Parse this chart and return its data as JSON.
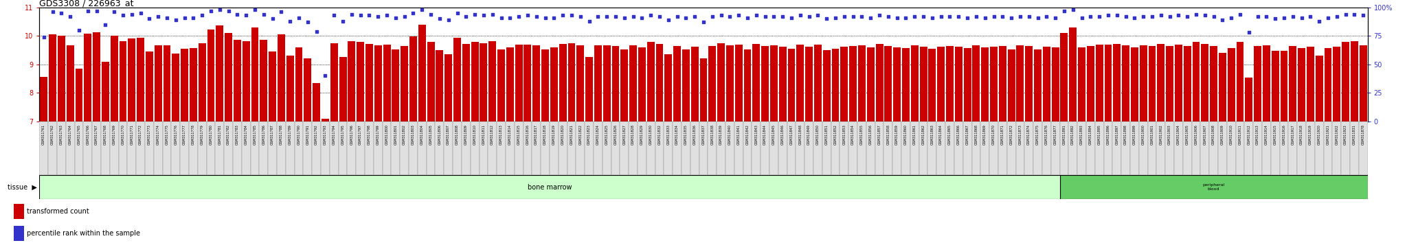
{
  "title": "GDS3308 / 226963_at",
  "bar_color": "#cc0000",
  "dot_color": "#3333cc",
  "left_ylim": [
    7,
    11
  ],
  "right_ylim": [
    0,
    100
  ],
  "left_yticks": [
    7,
    8,
    9,
    10,
    11
  ],
  "right_yticks": [
    0,
    25,
    50,
    75,
    100
  ],
  "right_yticklabels": [
    "0",
    "25",
    "50",
    "75",
    "100%"
  ],
  "tissue_color": "#ccffcc",
  "bone_marrow_label": "bone marrow",
  "peripheral_blood_label": "peripheral\nblood",
  "peripheral_blood_color": "#66cc66",
  "legend_bar_label": "transformed count",
  "legend_dot_label": "percentile rank within the sample",
  "samples": [
    "GSM311761",
    "GSM311762",
    "GSM311763",
    "GSM311764",
    "GSM311765",
    "GSM311766",
    "GSM311767",
    "GSM311768",
    "GSM311769",
    "GSM311770",
    "GSM311771",
    "GSM311772",
    "GSM311773",
    "GSM311774",
    "GSM311775",
    "GSM311776",
    "GSM311777",
    "GSM311778",
    "GSM311779",
    "GSM311780",
    "GSM311781",
    "GSM311782",
    "GSM311783",
    "GSM311784",
    "GSM311785",
    "GSM311786",
    "GSM311787",
    "GSM311788",
    "GSM311789",
    "GSM311790",
    "GSM311791",
    "GSM311792",
    "GSM311793",
    "GSM311794",
    "GSM311795",
    "GSM311796",
    "GSM311797",
    "GSM311798",
    "GSM311799",
    "GSM311800",
    "GSM311801",
    "GSM311802",
    "GSM311803",
    "GSM311804",
    "GSM311805",
    "GSM311806",
    "GSM311807",
    "GSM311808",
    "GSM311809",
    "GSM311810",
    "GSM311811",
    "GSM311812",
    "GSM311813",
    "GSM311814",
    "GSM311815",
    "GSM311816",
    "GSM311817",
    "GSM311818",
    "GSM311819",
    "GSM311820",
    "GSM311821",
    "GSM311822",
    "GSM311823",
    "GSM311824",
    "GSM311825",
    "GSM311826",
    "GSM311827",
    "GSM311828",
    "GSM311829",
    "GSM311830",
    "GSM311832",
    "GSM311833",
    "GSM311834",
    "GSM311835",
    "GSM311836",
    "GSM311837",
    "GSM311838",
    "GSM311839",
    "GSM311840",
    "GSM311841",
    "GSM311842",
    "GSM311843",
    "GSM311844",
    "GSM311845",
    "GSM311846",
    "GSM311847",
    "GSM311848",
    "GSM311849",
    "GSM311850",
    "GSM311851",
    "GSM311852",
    "GSM311853",
    "GSM311854",
    "GSM311855",
    "GSM311856",
    "GSM311857",
    "GSM311858",
    "GSM311859",
    "GSM311860",
    "GSM311861",
    "GSM311862",
    "GSM311863",
    "GSM311864",
    "GSM311865",
    "GSM311866",
    "GSM311867",
    "GSM311868",
    "GSM311869",
    "GSM311870",
    "GSM311871",
    "GSM311872",
    "GSM311873",
    "GSM311874",
    "GSM311875",
    "GSM311876",
    "GSM311877",
    "GSM311891",
    "GSM311892",
    "GSM311893",
    "GSM311894",
    "GSM311895",
    "GSM311896",
    "GSM311897",
    "GSM311898",
    "GSM311899",
    "GSM311900",
    "GSM311901",
    "GSM311902",
    "GSM311903",
    "GSM311904",
    "GSM311905",
    "GSM311906",
    "GSM311907",
    "GSM311908",
    "GSM311909",
    "GSM311910",
    "GSM311911",
    "GSM311912",
    "GSM311913",
    "GSM311914",
    "GSM311915",
    "GSM311916",
    "GSM311917",
    "GSM311918",
    "GSM311919",
    "GSM311920",
    "GSM311921",
    "GSM311922",
    "GSM311923",
    "GSM311831",
    "GSM311878"
  ],
  "bar_values": [
    8.56,
    10.06,
    10.01,
    9.66,
    8.84,
    10.08,
    10.12,
    9.09,
    10.0,
    9.82,
    9.9,
    9.93,
    9.45,
    9.68,
    9.67,
    9.39,
    9.56,
    9.57,
    9.73,
    10.22,
    10.36,
    10.11,
    9.86,
    9.82,
    10.29,
    9.85,
    9.45,
    10.05,
    9.3,
    9.6,
    9.2,
    8.35,
    7.1,
    9.73,
    9.25,
    9.82,
    9.79,
    9.71,
    9.68,
    9.7,
    9.53,
    9.65,
    9.97,
    10.38,
    9.78,
    9.5,
    9.35,
    9.93,
    9.72,
    9.8,
    9.75,
    9.82,
    9.53,
    9.6,
    9.7,
    9.7,
    9.68,
    9.53,
    9.6,
    9.72,
    9.74,
    9.68,
    9.25,
    9.66,
    9.66,
    9.65,
    9.52,
    9.66,
    9.6,
    9.79,
    9.72,
    9.35,
    9.65,
    9.52,
    9.62,
    9.2,
    9.65,
    9.73,
    9.68,
    9.69,
    9.52,
    9.72,
    9.65,
    9.68,
    9.63,
    9.56,
    9.7,
    9.63,
    9.69,
    9.51,
    9.55,
    9.62,
    9.65,
    9.68,
    9.59,
    9.72,
    9.65,
    9.6,
    9.57,
    9.68,
    9.62,
    9.55,
    9.62,
    9.65,
    9.62,
    9.57,
    9.68,
    9.59,
    9.62,
    9.65,
    9.52,
    9.68,
    9.65,
    9.52,
    9.62,
    9.59,
    10.1,
    10.3,
    9.6,
    9.65,
    9.7,
    9.7,
    9.72,
    9.68,
    9.6,
    9.68,
    9.65,
    9.72,
    9.65,
    9.7,
    9.65,
    9.8,
    9.72,
    9.65,
    9.4,
    9.58,
    9.78,
    8.55,
    9.65,
    9.68,
    9.48,
    9.48,
    9.65,
    9.58,
    9.62,
    9.3,
    9.58,
    9.62,
    9.8,
    9.82,
    9.68
  ],
  "dot_values": [
    74,
    96,
    95,
    92,
    80,
    97,
    97,
    85,
    96,
    93,
    94,
    95,
    90,
    92,
    91,
    89,
    91,
    91,
    93,
    97,
    98,
    97,
    94,
    93,
    98,
    94,
    90,
    96,
    88,
    91,
    87,
    79,
    40,
    93,
    88,
    94,
    93,
    93,
    92,
    93,
    91,
    92,
    95,
    98,
    94,
    90,
    89,
    95,
    92,
    94,
    93,
    94,
    91,
    91,
    92,
    93,
    92,
    91,
    91,
    93,
    93,
    92,
    88,
    92,
    92,
    92,
    91,
    92,
    91,
    93,
    92,
    89,
    92,
    91,
    92,
    87,
    92,
    93,
    92,
    93,
    91,
    93,
    92,
    92,
    92,
    91,
    93,
    92,
    93,
    90,
    91,
    92,
    92,
    92,
    91,
    93,
    92,
    91,
    91,
    92,
    92,
    91,
    92,
    92,
    92,
    91,
    92,
    91,
    92,
    92,
    91,
    92,
    92,
    91,
    92,
    91,
    97,
    98,
    91,
    92,
    92,
    93,
    93,
    92,
    91,
    92,
    92,
    93,
    92,
    93,
    92,
    94,
    93,
    92,
    89,
    91,
    94,
    78,
    92,
    92,
    90,
    91,
    92,
    91,
    92,
    88,
    91,
    92,
    94,
    94,
    93
  ],
  "bone_marrow_count": 116,
  "total_samples": 151
}
